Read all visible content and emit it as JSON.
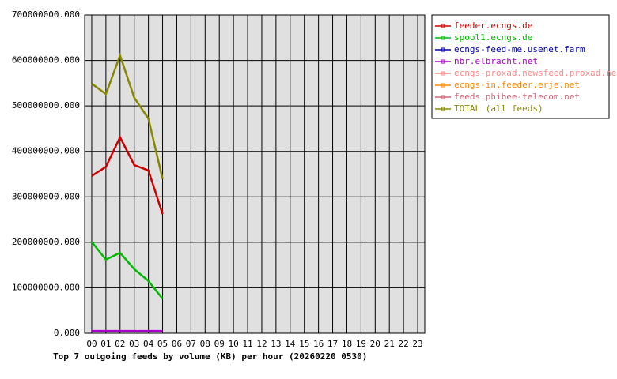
{
  "chart_data": {
    "type": "line",
    "title": "Top 7 outgoing feeds by volume (KB) per hour (20260220 0530)",
    "categories": [
      "00",
      "01",
      "02",
      "03",
      "04",
      "05",
      "06",
      "07",
      "08",
      "09",
      "10",
      "11",
      "12",
      "13",
      "14",
      "15",
      "16",
      "17",
      "18",
      "19",
      "20",
      "21",
      "22",
      "23"
    ],
    "series": [
      {
        "name": "feeder.ecngs.de",
        "color": "#cc0000",
        "values": [
          346000000,
          366000000,
          431000000,
          370000000,
          358000000,
          262000000,
          null,
          null,
          null,
          null,
          null,
          null,
          null,
          null,
          null,
          null,
          null,
          null,
          null,
          null,
          null,
          null,
          null,
          null
        ]
      },
      {
        "name": "spool1.ecngs.de",
        "color": "#00bb00",
        "values": [
          201000000,
          162000000,
          177000000,
          141000000,
          115000000,
          76000000,
          null,
          null,
          null,
          null,
          null,
          null,
          null,
          null,
          null,
          null,
          null,
          null,
          null,
          null,
          null,
          null,
          null,
          null
        ]
      },
      {
        "name": "ecngs-feed-me.usenet.farm",
        "color": "#0000aa",
        "values": [
          null,
          null,
          null,
          null,
          null,
          null,
          null,
          null,
          null,
          null,
          null,
          null,
          null,
          null,
          null,
          null,
          null,
          null,
          null,
          null,
          null,
          null,
          null,
          null
        ]
      },
      {
        "name": "nbr.elbracht.net",
        "color": "#aa00cc",
        "values": [
          5000000,
          5000000,
          5000000,
          5000000,
          5000000,
          5000000,
          null,
          null,
          null,
          null,
          null,
          null,
          null,
          null,
          null,
          null,
          null,
          null,
          null,
          null,
          null,
          null,
          null,
          null
        ]
      },
      {
        "name": "ecngs-proxad.newsfeed.proxad.net",
        "color": "#ff8888",
        "values": [
          null,
          null,
          null,
          null,
          null,
          null,
          null,
          null,
          null,
          null,
          null,
          null,
          null,
          null,
          null,
          null,
          null,
          null,
          null,
          null,
          null,
          null,
          null,
          null
        ]
      },
      {
        "name": "ecngs-in.feeder.erje.net",
        "color": "#ff8800",
        "values": [
          null,
          null,
          null,
          null,
          null,
          null,
          null,
          null,
          null,
          null,
          null,
          null,
          null,
          null,
          null,
          null,
          null,
          null,
          null,
          null,
          null,
          null,
          null,
          null
        ]
      },
      {
        "name": "feeds.phibee-telecom.net",
        "color": "#cc6677",
        "values": [
          null,
          null,
          null,
          null,
          null,
          null,
          null,
          null,
          null,
          null,
          null,
          null,
          null,
          null,
          null,
          null,
          null,
          null,
          null,
          null,
          null,
          null,
          null,
          null
        ]
      },
      {
        "name": "TOTAL (all feeds)",
        "color": "#888800",
        "values": [
          549000000,
          526000000,
          611000000,
          518000000,
          472000000,
          339000000,
          null,
          null,
          null,
          null,
          null,
          null,
          null,
          null,
          null,
          null,
          null,
          null,
          null,
          null,
          null,
          null,
          null,
          null
        ]
      }
    ],
    "ylim": [
      0,
      700000000
    ],
    "yticks": [
      {
        "value": 0,
        "label": "0.000"
      },
      {
        "value": 100000000,
        "label": "100000000.000"
      },
      {
        "value": 200000000,
        "label": "200000000.000"
      },
      {
        "value": 300000000,
        "label": "300000000.000"
      },
      {
        "value": 400000000,
        "label": "400000000.000"
      },
      {
        "value": 500000000,
        "label": "500000000.000"
      },
      {
        "value": 600000000,
        "label": "600000000.000"
      },
      {
        "value": 700000000,
        "label": "700000000.000"
      }
    ],
    "grid": true,
    "legend": "right"
  }
}
